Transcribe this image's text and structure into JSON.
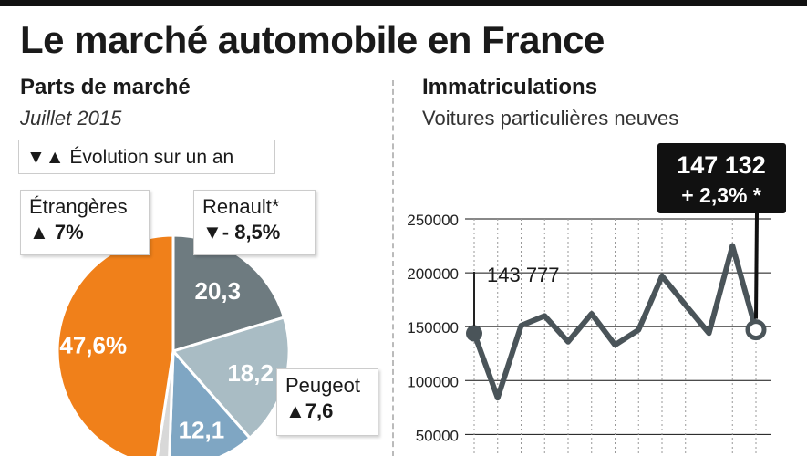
{
  "title": "Le marché automobile en France",
  "left": {
    "title": "Parts de marché",
    "subtitle": "Juillet 2015",
    "legend": {
      "symbols": "▼▲",
      "text": "Évolution sur un an"
    },
    "callouts": {
      "etrangeres": {
        "name": "Étrangères",
        "change": "▲ 7%"
      },
      "renault": {
        "name": "Renault*",
        "change": "▼- 8,5%"
      },
      "peugeot": {
        "name": "Peugeot",
        "change": "▲7,6"
      }
    }
  },
  "right": {
    "title": "Immatriculations",
    "subtitle": "Voitures particulières neuves",
    "start_label": "143 777",
    "end_value": "147 132",
    "end_change": "+ 2,3% *"
  },
  "chart_data": [
    {
      "type": "pie",
      "slices": [
        {
          "name": "Renault",
          "value": 20.3,
          "label": "20,3",
          "color": "#6e7b80"
        },
        {
          "name": "",
          "value": 18.2,
          "label": "18,2",
          "color": "#a9bcc4"
        },
        {
          "name": "",
          "value": 12.1,
          "label": "12,1",
          "color": "#7fa6c3"
        },
        {
          "name": "",
          "value": 1.8,
          "label": "",
          "color": "#d8d8d8"
        },
        {
          "name": "Étrangères",
          "value": 47.6,
          "label": "47,6%",
          "color": "#f0801a"
        }
      ]
    },
    {
      "type": "line",
      "y_ticks": [
        50000,
        100000,
        150000,
        200000,
        250000
      ],
      "y_tick_labels": [
        "50000",
        "100000",
        "150000",
        "200000",
        "250000"
      ],
      "ylim": [
        30000,
        250000
      ],
      "values": [
        143777,
        84000,
        151000,
        160000,
        136000,
        162000,
        133000,
        147000,
        197000,
        170000,
        144000,
        225000,
        147132
      ],
      "color": "#4a5459"
    }
  ]
}
